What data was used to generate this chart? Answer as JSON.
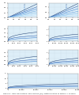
{
  "title": "Figure 9 - NFPA 68 method, 2002 edition [15]. Determination of factors A, B and C",
  "bg": "#ffffff",
  "fill": "#ddeef8",
  "grid_c": "#c8d8e8",
  "spine_c": "#888888",
  "charts": [
    {
      "id": 0,
      "row": 0,
      "col": 0,
      "xlim": [
        0,
        1.0
      ],
      "ylim": [
        0,
        0.3
      ],
      "xticks": [
        0,
        0.2,
        0.4,
        0.6,
        0.8,
        1.0
      ],
      "yticks": [
        0,
        0.05,
        0.1,
        0.15,
        0.2,
        0.25,
        0.3
      ],
      "lines": [
        {
          "slope": 0.28,
          "intercept": 0.0
        },
        {
          "slope": 0.22,
          "intercept": 0.0
        },
        {
          "slope": 0.18,
          "intercept": 0.0
        },
        {
          "slope": 0.14,
          "intercept": 0.0
        },
        {
          "slope": 0.1,
          "intercept": 0.0
        },
        {
          "slope": 0.06,
          "intercept": 0.0
        }
      ],
      "legend": [
        "0.50",
        "0.30",
        "0.25",
        "0.20",
        "0.15",
        "0.10"
      ],
      "has_legend": true
    },
    {
      "id": 1,
      "row": 0,
      "col": 1,
      "xlim": [
        0,
        1.0
      ],
      "ylim": [
        0,
        1.4
      ],
      "xticks": [
        0,
        0.2,
        0.4,
        0.6,
        0.8,
        1.0
      ],
      "yticks": [
        0,
        0.2,
        0.4,
        0.6,
        0.8,
        1.0,
        1.2,
        1.4
      ],
      "lines": [
        {
          "slope": 1.35,
          "intercept": 0.0
        },
        {
          "slope": 1.1,
          "intercept": 0.0
        },
        {
          "slope": 0.85,
          "intercept": 0.0
        },
        {
          "slope": 0.6,
          "intercept": 0.0
        },
        {
          "slope": 0.4,
          "intercept": 0.0
        },
        {
          "slope": 0.2,
          "intercept": 0.0
        }
      ],
      "legend": [
        "0.50",
        "0.40",
        "0.30",
        "0.25",
        "0.20",
        "0.10"
      ],
      "has_legend": true
    },
    {
      "id": 2,
      "row": 1,
      "col": 0,
      "xlim": [
        0,
        5000
      ],
      "ylim": [
        0,
        1.8
      ],
      "power": true,
      "lines": [
        {
          "scale": 0.065,
          "exp": 0.333
        },
        {
          "scale": 0.04,
          "exp": 0.333
        },
        {
          "scale": 0.025,
          "exp": 0.333
        }
      ],
      "has_legend": false
    },
    {
      "id": 3,
      "row": 1,
      "col": 1,
      "xlim": [
        0,
        50000
      ],
      "ylim": [
        0,
        5.0
      ],
      "power": true,
      "lines": [
        {
          "scale": 0.065,
          "exp": 0.333
        },
        {
          "scale": 0.04,
          "exp": 0.333
        },
        {
          "scale": 0.025,
          "exp": 0.333
        }
      ],
      "has_legend": false
    },
    {
      "id": 4,
      "row": 2,
      "col": 0,
      "xlim": [
        0,
        5000
      ],
      "ylim": [
        0,
        1.8
      ],
      "power": true,
      "lines": [
        {
          "scale": 0.06,
          "exp": 0.333
        },
        {
          "scale": 0.038,
          "exp": 0.333
        },
        {
          "scale": 0.024,
          "exp": 0.333
        }
      ],
      "has_legend": false
    },
    {
      "id": 5,
      "row": 2,
      "col": 1,
      "xlim": [
        0,
        50000
      ],
      "ylim": [
        0,
        5.0
      ],
      "power": true,
      "lines": [
        {
          "scale": 0.06,
          "exp": 0.333
        },
        {
          "scale": 0.038,
          "exp": 0.333
        },
        {
          "scale": 0.024,
          "exp": 0.333
        }
      ],
      "has_legend": false
    },
    {
      "id": 6,
      "row": 3,
      "col": 0,
      "xlim": [
        0,
        500000
      ],
      "ylim": [
        0,
        15
      ],
      "power": true,
      "lines": [
        {
          "scale": 0.06,
          "exp": 0.333
        },
        {
          "scale": 0.038,
          "exp": 0.333
        },
        {
          "scale": 0.024,
          "exp": 0.333
        }
      ],
      "has_legend": false,
      "wide": true
    }
  ],
  "line_colors": [
    "#1a3a6e",
    "#2255aa",
    "#3377cc",
    "#5599dd",
    "#77bbee",
    "#aaddff"
  ]
}
